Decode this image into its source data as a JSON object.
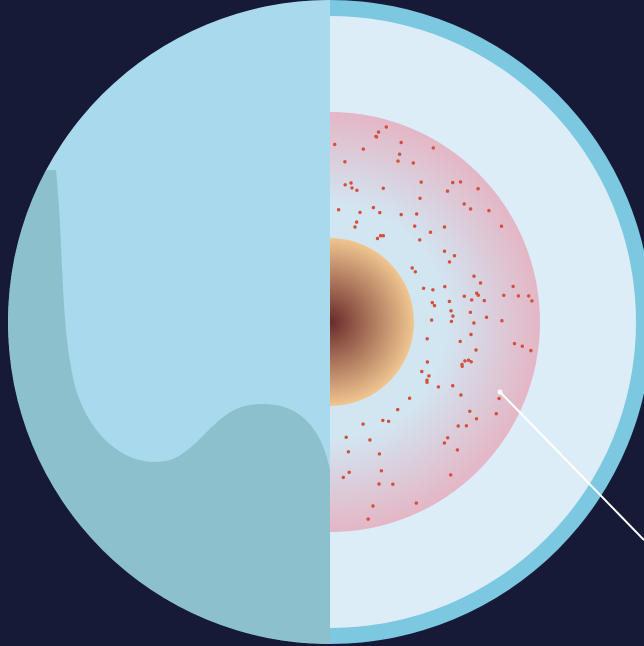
{
  "diagram": {
    "type": "planet-cutaway",
    "colors": {
      "background": "#161a36",
      "outer_ring": "#7cc8e0",
      "surface_light": "#a9d9ec",
      "surface_shadow": "#8cc0cc",
      "mantle_white": "#dcedf8",
      "ocean_layer_edge": "#e4b6c5",
      "ocean_layer_center": "#d2e6f2",
      "core_edge": "#f0c690",
      "core_center": "#6a2a2a",
      "dots": "#d2503c",
      "pointer_line": "#ffffff"
    },
    "layers": [
      {
        "name": "outer-shell-icon"
      },
      {
        "name": "ice-mantle-icon"
      },
      {
        "name": "ocean-layer-icon"
      },
      {
        "name": "rocky-core-icon"
      }
    ]
  }
}
